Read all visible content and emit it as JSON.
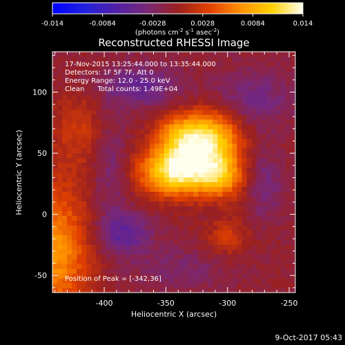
{
  "chart_data": {
    "type": "heatmap",
    "title": "Reconstructed RHESSI Image",
    "xlabel": "Heliocentric X (arcsec)",
    "ylabel": "Heliocentric Y (arcsec)",
    "xlim": [
      -442,
      -245
    ],
    "ylim": [
      -64,
      133
    ],
    "x_ticks": [
      -400,
      -350,
      -300,
      -250
    ],
    "y_ticks": [
      -50,
      0,
      50,
      100
    ],
    "colorbar": {
      "range": [
        -0.014,
        0.014
      ],
      "ticks": [
        -0.014,
        -0.0084,
        -0.0028,
        0.0028,
        0.0084,
        0.014
      ],
      "tick_labels": [
        "-0.014",
        "-0.0084",
        "-0.0028",
        "0.0028",
        "0.0084",
        "0.014"
      ],
      "unit_main": "(photons cm",
      "unit_exp1": "-2",
      "unit_mid": " s",
      "unit_exp2": "-1",
      "unit_mid2": " asec",
      "unit_exp3": "-2",
      "unit_end": ")"
    },
    "info_lines": [
      "17-Nov-2015 13:25:44.000 to 13:35:44.000",
      "Detectors: 1F 5F 7F, Att 0",
      "Energy Range: 12.0 - 25.0 keV",
      "Clean      Total counts: 1.49E+04"
    ],
    "peak_label": "Position of Peak = [-342,36]",
    "peak": [
      -342,
      36
    ],
    "footer_date": "9-Oct-2017 05:43",
    "components": [
      {
        "x": -342,
        "y": 36,
        "sx": 20,
        "sy": 14,
        "a": 0.014
      },
      {
        "x": -312,
        "y": 60,
        "sx": 16,
        "sy": 18,
        "a": 0.011
      },
      {
        "x": -338,
        "y": 65,
        "sx": 14,
        "sy": 12,
        "a": 0.008
      },
      {
        "x": -305,
        "y": 30,
        "sx": 14,
        "sy": 12,
        "a": 0.007
      },
      {
        "x": -440,
        "y": -30,
        "sx": 20,
        "sy": 38,
        "a": 0.008
      },
      {
        "x": -420,
        "y": 70,
        "sx": 16,
        "sy": 22,
        "a": 0.003
      },
      {
        "x": -300,
        "y": -18,
        "sx": 12,
        "sy": 10,
        "a": 0.0035
      },
      {
        "x": -372,
        "y": 105,
        "sx": 22,
        "sy": 12,
        "a": -0.0042
      },
      {
        "x": -280,
        "y": 95,
        "sx": 24,
        "sy": 16,
        "a": -0.0032
      },
      {
        "x": -385,
        "y": -15,
        "sx": 16,
        "sy": 12,
        "a": -0.0048
      },
      {
        "x": -270,
        "y": 25,
        "sx": 10,
        "sy": 20,
        "a": -0.003
      },
      {
        "x": -340,
        "y": -45,
        "sx": 26,
        "sy": 12,
        "a": -0.0022
      },
      {
        "x": -395,
        "y": 40,
        "sx": 10,
        "sy": 28,
        "a": -0.0028
      }
    ]
  },
  "colors": {
    "background": "#000000",
    "colormap": [
      "#0000ff",
      "#2020e0",
      "#5020a8",
      "#782878",
      "#9a2020",
      "#e04000",
      "#ff9000",
      "#ffd000",
      "#fffff0"
    ]
  }
}
